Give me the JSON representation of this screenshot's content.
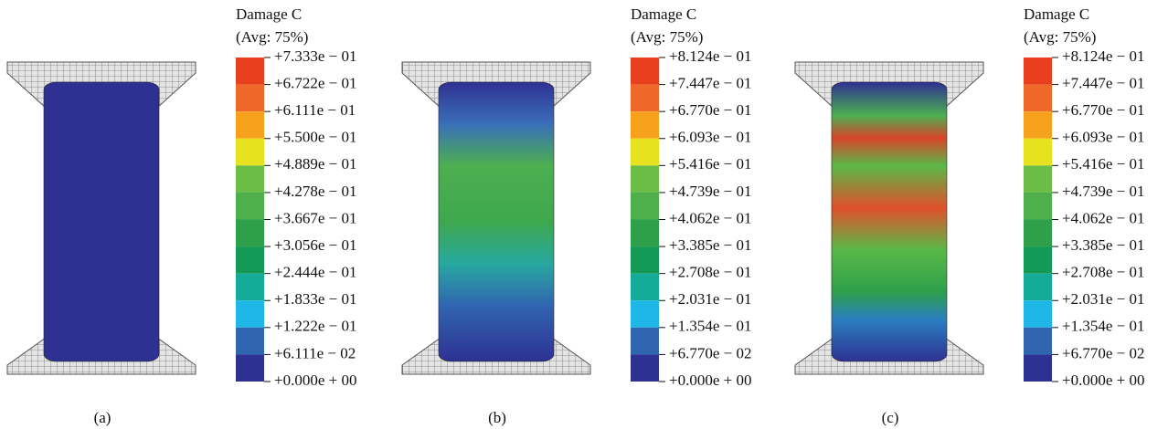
{
  "panels": [
    {
      "caption": "(a)",
      "legend": {
        "title": "Damage C",
        "subtitle": "(Avg: 75%)",
        "labels": [
          "+7.333e − 01",
          "+6.722e − 01",
          "+6.111e − 01",
          "+5.500e − 01",
          "+4.889e − 01",
          "+4.278e − 01",
          "+3.667e − 01",
          "+3.056e − 01",
          "+2.444e − 01",
          "+1.833e − 01",
          "+1.222e − 01",
          "+6.111e − 02",
          "+0.000e + 00"
        ]
      }
    },
    {
      "caption": "(b)",
      "legend": {
        "title": "Damage C",
        "subtitle": "(Avg: 75%)",
        "labels": [
          "+8.124e − 01",
          "+7.447e − 01",
          "+6.770e − 01",
          "+6.093e − 01",
          "+5.416e − 01",
          "+4.739e − 01",
          "+4.062e − 01",
          "+3.385e − 01",
          "+2.708e − 01",
          "+2.031e − 01",
          "+1.354e − 01",
          "+6.770e − 02",
          "+0.000e + 00"
        ]
      }
    },
    {
      "caption": "(c)",
      "legend": {
        "title": "Damage C",
        "subtitle": "(Avg: 75%)",
        "labels": [
          "+8.124e − 01",
          "+7.447e − 01",
          "+6.770e − 01",
          "+6.093e − 01",
          "+5.416e − 01",
          "+4.739e − 01",
          "+4.062e − 01",
          "+3.385e − 01",
          "+2.708e − 01",
          "+2.031e − 01",
          "+1.354e − 01",
          "+6.770e − 02",
          "+0.000e + 00"
        ]
      }
    }
  ]
}
